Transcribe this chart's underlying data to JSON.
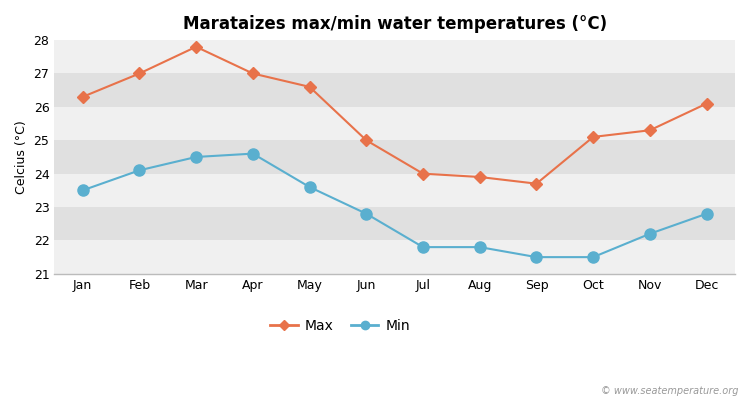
{
  "title": "Marataizes max/min water temperatures (°C)",
  "ylabel": "Celcius (°C)",
  "months": [
    "Jan",
    "Feb",
    "Mar",
    "Apr",
    "May",
    "Jun",
    "Jul",
    "Aug",
    "Sep",
    "Oct",
    "Nov",
    "Dec"
  ],
  "max_temps": [
    26.3,
    27.0,
    27.8,
    27.0,
    26.6,
    25.0,
    24.0,
    23.9,
    23.7,
    25.1,
    25.3,
    26.1
  ],
  "min_temps": [
    23.5,
    24.1,
    24.5,
    24.6,
    23.6,
    22.8,
    21.8,
    21.8,
    21.5,
    21.5,
    22.2,
    22.8
  ],
  "max_color": "#e8724a",
  "min_color": "#5aafcf",
  "fig_bg_color": "#ffffff",
  "stripe_light": "#f0f0f0",
  "stripe_dark": "#e0e0e0",
  "grid_color": "#ffffff",
  "ylim": [
    21,
    28
  ],
  "yticks": [
    21,
    22,
    23,
    24,
    25,
    26,
    27,
    28
  ],
  "legend_labels": [
    "Max",
    "Min"
  ],
  "watermark": "© www.seatemperature.org",
  "max_marker": "D",
  "min_marker": "o",
  "markersize_max": 6,
  "markersize_min": 8,
  "linewidth": 1.5,
  "title_fontsize": 12,
  "label_fontsize": 9,
  "tick_fontsize": 9
}
